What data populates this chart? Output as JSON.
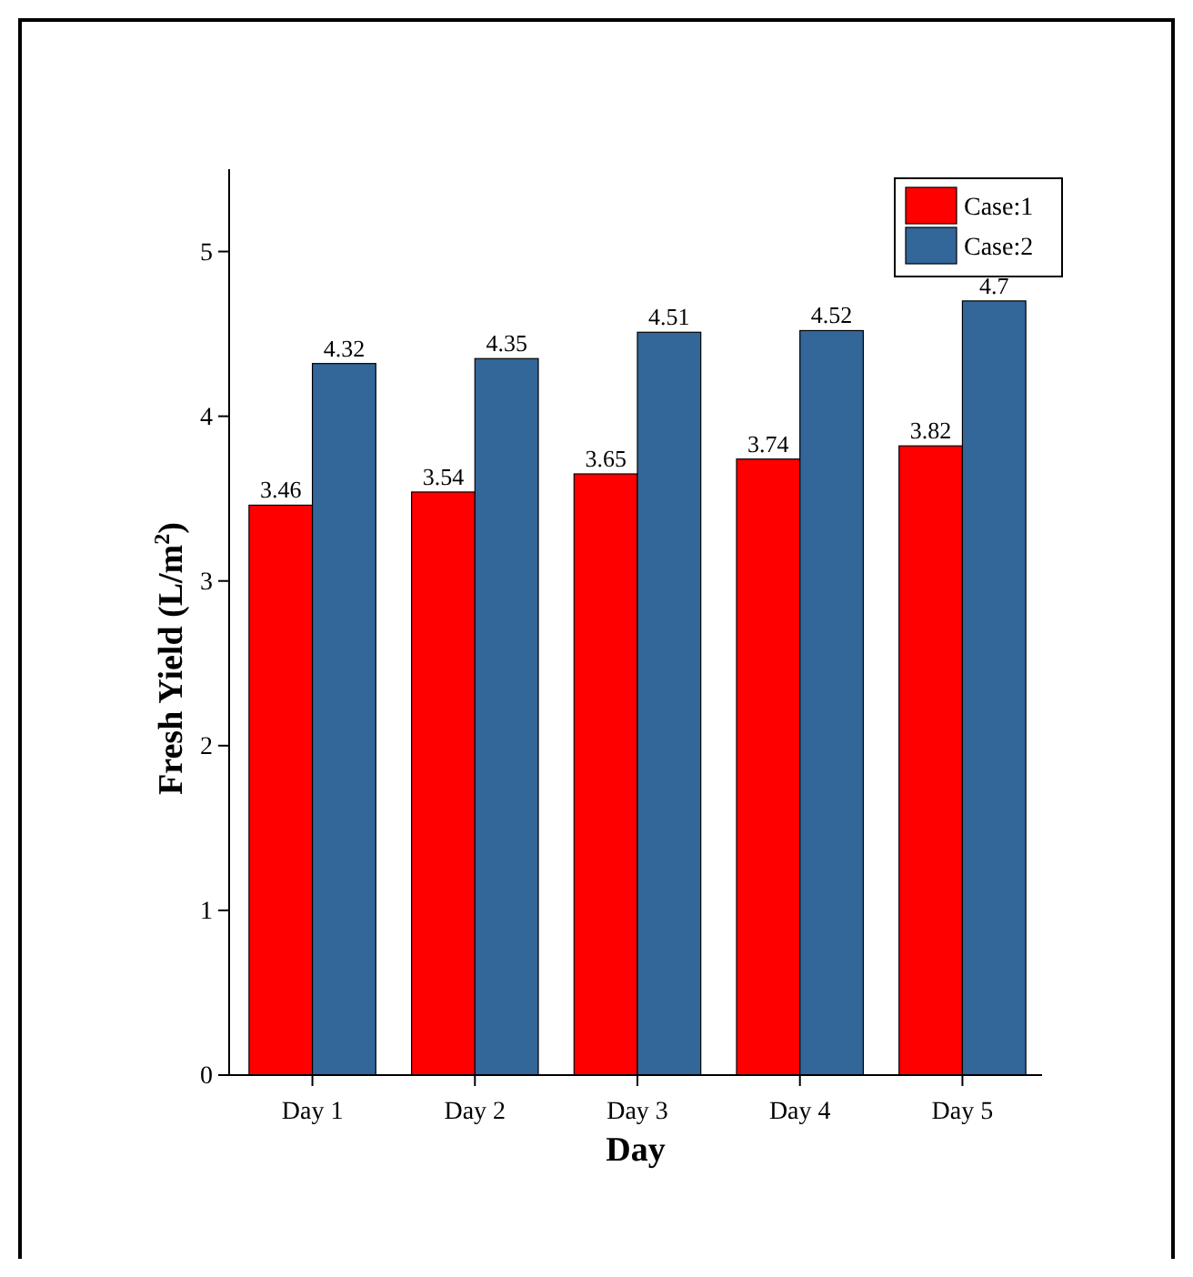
{
  "chart_data": {
    "type": "bar",
    "xlabel": "Day",
    "ylabel": "Fresh Yield (L/m$^{2}$)",
    "categories": [
      "Day 1",
      "Day 2",
      "Day 3",
      "Day 4",
      "Day 5"
    ],
    "series": [
      {
        "name": "Case:1",
        "color": "#ff0000",
        "values": [
          3.46,
          3.54,
          3.65,
          3.74,
          3.82
        ]
      },
      {
        "name": "Case:2",
        "color": "#336699",
        "values": [
          4.32,
          4.35,
          4.51,
          4.52,
          4.7
        ]
      }
    ],
    "ylim": [
      0,
      5.5
    ],
    "yticks": [
      0,
      1,
      2,
      3,
      4,
      5
    ],
    "data_labels": true,
    "legend": "top right",
    "grid": false
  }
}
